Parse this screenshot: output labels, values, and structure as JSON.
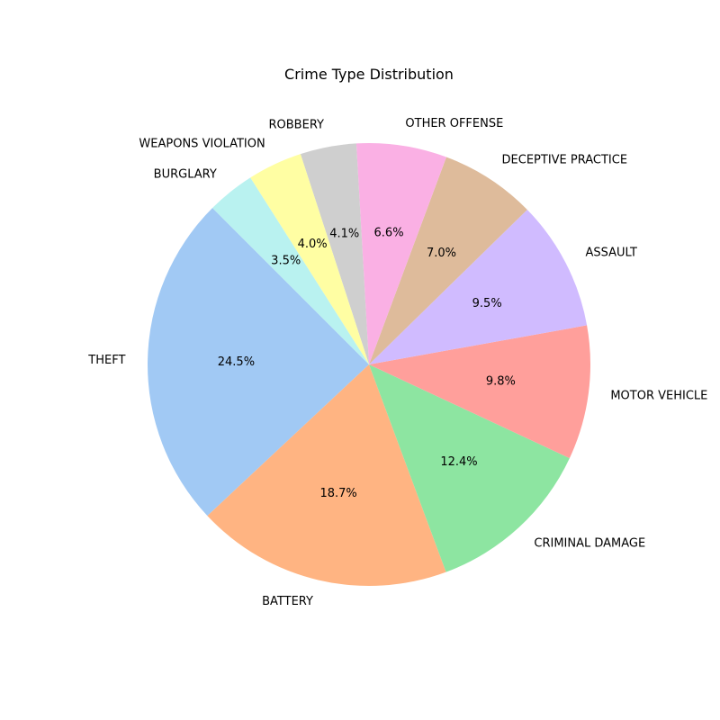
{
  "chart_data": {
    "type": "pie",
    "title": "Crime Type Distribution",
    "start_angle_deg": 135,
    "direction": "counterclockwise",
    "slices": [
      {
        "label": "THEFT",
        "value": 24.5,
        "pct_label": "24.5%",
        "color": "#a1c9f4"
      },
      {
        "label": "BATTERY",
        "value": 18.7,
        "pct_label": "18.7%",
        "color": "#ffb482"
      },
      {
        "label": "CRIMINAL DAMAGE",
        "value": 12.4,
        "pct_label": "12.4%",
        "color": "#8de5a1"
      },
      {
        "label": "MOTOR VEHICLE",
        "value": 9.8,
        "pct_label": "9.8%",
        "color": "#ff9f9b"
      },
      {
        "label": "ASSAULT",
        "value": 9.5,
        "pct_label": "9.5%",
        "color": "#d0bbff"
      },
      {
        "label": "DECEPTIVE PRACTICE",
        "value": 7.0,
        "pct_label": "7.0%",
        "color": "#debb9b"
      },
      {
        "label": "OTHER OFFENSE",
        "value": 6.6,
        "pct_label": "6.6%",
        "color": "#fab0e4"
      },
      {
        "label": "ROBBERY",
        "value": 4.1,
        "pct_label": "4.1%",
        "color": "#cfcfcf"
      },
      {
        "label": "WEAPONS VIOLATION",
        "value": 4.0,
        "pct_label": "4.0%",
        "color": "#fffea3"
      },
      {
        "label": "BURGLARY",
        "value": 3.5,
        "pct_label": "3.5%",
        "color": "#b9f2f0"
      }
    ]
  }
}
